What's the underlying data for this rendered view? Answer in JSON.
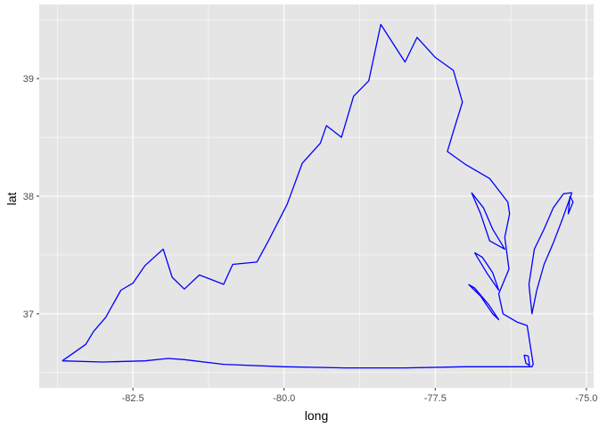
{
  "chart_data": {
    "type": "line",
    "title": "",
    "xlabel": "long",
    "ylabel": "lat",
    "xlim": [
      -84.05,
      -74.88
    ],
    "ylim": [
      36.37,
      39.63
    ],
    "x_ticks": [
      -82.5,
      -80.0,
      -77.5,
      -75.0
    ],
    "x_tick_labels": [
      "-82.5",
      "-80.0",
      "-77.5",
      "-75.0"
    ],
    "y_ticks": [
      37,
      38,
      39
    ],
    "y_tick_labels": [
      "37",
      "38",
      "39"
    ],
    "grid": true,
    "background": "#e5e5e5",
    "grid_major_color": "#ffffff",
    "line_color": "#0000ff",
    "series": [
      {
        "points": [
          [
            -83.67,
            36.6
          ],
          [
            -83.5,
            36.66
          ],
          [
            -83.28,
            36.74
          ],
          [
            -83.15,
            36.85
          ],
          [
            -82.95,
            36.97
          ],
          [
            -82.7,
            37.2
          ],
          [
            -82.5,
            37.26
          ],
          [
            -82.3,
            37.41
          ],
          [
            -82.0,
            37.55
          ],
          [
            -81.85,
            37.31
          ],
          [
            -81.65,
            37.21
          ],
          [
            -81.4,
            37.33
          ],
          [
            -81.0,
            37.25
          ],
          [
            -80.85,
            37.42
          ],
          [
            -80.45,
            37.44
          ],
          [
            -80.25,
            37.63
          ],
          [
            -79.95,
            37.93
          ],
          [
            -79.7,
            38.28
          ],
          [
            -79.4,
            38.45
          ],
          [
            -79.3,
            38.6
          ],
          [
            -79.05,
            38.5
          ],
          [
            -78.85,
            38.85
          ],
          [
            -78.6,
            38.98
          ],
          [
            -78.4,
            39.46
          ],
          [
            -78.0,
            39.14
          ],
          [
            -77.8,
            39.35
          ],
          [
            -77.5,
            39.18
          ],
          [
            -77.2,
            39.07
          ],
          [
            -77.05,
            38.8
          ],
          [
            -77.2,
            38.55
          ],
          [
            -77.3,
            38.38
          ],
          [
            -77.0,
            38.27
          ],
          [
            -76.6,
            38.15
          ],
          [
            -76.3,
            37.95
          ],
          [
            -76.27,
            37.85
          ],
          [
            -76.35,
            37.65
          ],
          [
            -76.28,
            37.38
          ],
          [
            -76.45,
            37.17
          ],
          [
            -76.38,
            37.0
          ],
          [
            -76.15,
            36.93
          ],
          [
            -75.98,
            36.9
          ],
          [
            -75.88,
            36.57
          ],
          [
            -75.9,
            36.55
          ],
          [
            -77.0,
            36.55
          ],
          [
            -78.0,
            36.54
          ],
          [
            -79.0,
            36.54
          ],
          [
            -80.0,
            36.55
          ],
          [
            -81.0,
            36.57
          ],
          [
            -81.65,
            36.61
          ],
          [
            -81.92,
            36.62
          ],
          [
            -82.3,
            36.6
          ],
          [
            -83.0,
            36.59
          ],
          [
            -83.67,
            36.6
          ]
        ]
      },
      {
        "points": [
          [
            -75.24,
            38.03
          ],
          [
            -75.4,
            37.8
          ],
          [
            -75.55,
            37.6
          ],
          [
            -75.7,
            37.42
          ],
          [
            -75.82,
            37.2
          ],
          [
            -75.9,
            37.0
          ],
          [
            -75.95,
            37.25
          ],
          [
            -75.86,
            37.55
          ],
          [
            -75.7,
            37.72
          ],
          [
            -75.55,
            37.9
          ],
          [
            -75.38,
            38.02
          ],
          [
            -75.24,
            38.03
          ]
        ]
      },
      {
        "points": [
          [
            -75.27,
            38.0
          ],
          [
            -75.22,
            37.95
          ],
          [
            -75.3,
            37.85
          ],
          [
            -75.27,
            38.0
          ]
        ]
      },
      {
        "points": [
          [
            -76.9,
            38.03
          ],
          [
            -76.75,
            37.85
          ],
          [
            -76.6,
            37.62
          ],
          [
            -76.35,
            37.55
          ],
          [
            -76.55,
            37.72
          ],
          [
            -76.7,
            37.9
          ],
          [
            -76.9,
            38.03
          ]
        ]
      },
      {
        "points": [
          [
            -76.85,
            37.52
          ],
          [
            -76.65,
            37.35
          ],
          [
            -76.45,
            37.2
          ],
          [
            -76.55,
            37.35
          ],
          [
            -76.72,
            37.48
          ],
          [
            -76.85,
            37.52
          ]
        ]
      },
      {
        "points": [
          [
            -76.95,
            37.25
          ],
          [
            -76.75,
            37.15
          ],
          [
            -76.55,
            37.0
          ],
          [
            -76.45,
            36.95
          ],
          [
            -76.62,
            37.08
          ],
          [
            -76.85,
            37.22
          ],
          [
            -76.95,
            37.25
          ]
        ]
      },
      {
        "points": [
          [
            -76.03,
            36.65
          ],
          [
            -76.0,
            36.58
          ],
          [
            -75.94,
            36.56
          ],
          [
            -75.96,
            36.64
          ],
          [
            -76.03,
            36.65
          ]
        ]
      }
    ]
  }
}
